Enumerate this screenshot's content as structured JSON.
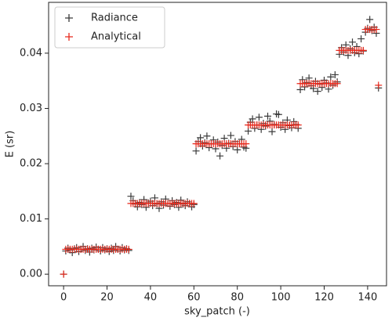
{
  "chart_data": {
    "type": "scatter",
    "xlabel": "sky_patch (-)",
    "ylabel": "E (sr)",
    "xlim": [
      -6.9,
      148.7
    ],
    "ylim": [
      -0.0021,
      0.0492
    ],
    "xticks": [
      0,
      20,
      40,
      60,
      80,
      100,
      120,
      140
    ],
    "yticks": [
      {
        "value": 0,
        "label": "0.00"
      },
      0.01,
      0.02,
      0.03,
      0.04
    ],
    "legend": "upper left",
    "marker": "+",
    "x": [
      0,
      1,
      2,
      3,
      4,
      5,
      6,
      7,
      8,
      9,
      10,
      11,
      12,
      13,
      14,
      15,
      16,
      17,
      18,
      19,
      20,
      21,
      22,
      23,
      24,
      25,
      26,
      27,
      28,
      29,
      30,
      31,
      32,
      33,
      34,
      35,
      36,
      37,
      38,
      39,
      40,
      41,
      42,
      43,
      44,
      45,
      46,
      47,
      48,
      49,
      50,
      51,
      52,
      53,
      54,
      55,
      56,
      57,
      58,
      59,
      60,
      61,
      62,
      63,
      64,
      65,
      66,
      67,
      68,
      69,
      70,
      71,
      72,
      73,
      74,
      75,
      76,
      77,
      78,
      79,
      80,
      81,
      82,
      83,
      84,
      85,
      86,
      87,
      88,
      89,
      90,
      91,
      92,
      93,
      94,
      95,
      96,
      97,
      98,
      99,
      100,
      101,
      102,
      103,
      104,
      105,
      106,
      107,
      108,
      109,
      110,
      111,
      112,
      113,
      114,
      115,
      116,
      117,
      118,
      119,
      120,
      121,
      122,
      123,
      124,
      125,
      126,
      127,
      128,
      129,
      130,
      131,
      132,
      133,
      134,
      135,
      136,
      137,
      138,
      139,
      140,
      141,
      142,
      143,
      144,
      145
    ],
    "series": [
      {
        "name": "Radiance",
        "color": "#3a3a3a",
        "values": [
          0,
          0.0042,
          0.0047,
          0.0044,
          0.0039,
          0.0046,
          0.0048,
          0.0041,
          0.0045,
          0.005,
          0.0043,
          0.0046,
          0.004,
          0.0047,
          0.0044,
          0.0049,
          0.0045,
          0.0042,
          0.0048,
          0.0044,
          0.0046,
          0.0041,
          0.0047,
          0.0043,
          0.005,
          0.0045,
          0.0042,
          0.0048,
          0.0044,
          0.0046,
          0.0043,
          0.0141,
          0.0133,
          0.0127,
          0.0122,
          0.013,
          0.0126,
          0.0135,
          0.0121,
          0.0129,
          0.0132,
          0.0124,
          0.0138,
          0.0127,
          0.0119,
          0.0131,
          0.0125,
          0.0136,
          0.0128,
          0.0123,
          0.0133,
          0.0126,
          0.013,
          0.0121,
          0.0134,
          0.0127,
          0.0124,
          0.0131,
          0.0128,
          0.0122,
          0.0126,
          0.0223,
          0.024,
          0.0247,
          0.0232,
          0.0238,
          0.025,
          0.0229,
          0.0236,
          0.0243,
          0.0227,
          0.0239,
          0.0214,
          0.0233,
          0.0246,
          0.0228,
          0.0237,
          0.0251,
          0.0231,
          0.024,
          0.0225,
          0.0236,
          0.0244,
          0.023,
          0.0228,
          0.0259,
          0.0275,
          0.0281,
          0.0264,
          0.027,
          0.0284,
          0.0262,
          0.0273,
          0.0268,
          0.0286,
          0.0277,
          0.0258,
          0.0271,
          0.029,
          0.0289,
          0.0266,
          0.0274,
          0.0262,
          0.0279,
          0.0269,
          0.0265,
          0.0276,
          0.0271,
          0.0264,
          0.0334,
          0.0352,
          0.0339,
          0.0347,
          0.0355,
          0.0341,
          0.0336,
          0.0349,
          0.0331,
          0.0344,
          0.0338,
          0.0351,
          0.0346,
          0.0335,
          0.0357,
          0.0342,
          0.0361,
          0.0348,
          0.0398,
          0.041,
          0.0402,
          0.0415,
          0.0396,
          0.0408,
          0.042,
          0.0401,
          0.0412,
          0.0399,
          0.0426,
          0.0404,
          0.0438,
          0.0445,
          0.0461,
          0.0441,
          0.0447,
          0.0436,
          0.0337
        ]
      },
      {
        "name": "Analytical",
        "color": "#e8291c",
        "values": [
          0,
          0.0045,
          0.0045,
          0.0045,
          0.0045,
          0.0045,
          0.0045,
          0.0045,
          0.0045,
          0.0045,
          0.0045,
          0.0045,
          0.0045,
          0.0045,
          0.0045,
          0.0045,
          0.0045,
          0.0045,
          0.0045,
          0.0045,
          0.0045,
          0.0045,
          0.0045,
          0.0045,
          0.0045,
          0.0045,
          0.0045,
          0.0045,
          0.0045,
          0.0045,
          0.0045,
          0.0128,
          0.0128,
          0.0128,
          0.0128,
          0.0128,
          0.0128,
          0.0128,
          0.0128,
          0.0128,
          0.0128,
          0.0128,
          0.0128,
          0.0128,
          0.0128,
          0.0128,
          0.0128,
          0.0128,
          0.0128,
          0.0128,
          0.0128,
          0.0128,
          0.0128,
          0.0128,
          0.0128,
          0.0128,
          0.0128,
          0.0128,
          0.0128,
          0.0128,
          0.0128,
          0.0236,
          0.0236,
          0.0236,
          0.0236,
          0.0236,
          0.0236,
          0.0236,
          0.0236,
          0.0236,
          0.0236,
          0.0236,
          0.0236,
          0.0236,
          0.0236,
          0.0236,
          0.0236,
          0.0236,
          0.0236,
          0.0236,
          0.0236,
          0.0236,
          0.0236,
          0.0236,
          0.0236,
          0.027,
          0.027,
          0.027,
          0.027,
          0.027,
          0.027,
          0.027,
          0.027,
          0.027,
          0.027,
          0.027,
          0.027,
          0.027,
          0.027,
          0.027,
          0.027,
          0.027,
          0.027,
          0.027,
          0.027,
          0.027,
          0.027,
          0.027,
          0.027,
          0.0345,
          0.0345,
          0.0345,
          0.0345,
          0.0345,
          0.0345,
          0.0345,
          0.0345,
          0.0345,
          0.0345,
          0.0345,
          0.0345,
          0.0345,
          0.0345,
          0.0345,
          0.0345,
          0.0345,
          0.0345,
          0.0405,
          0.0405,
          0.0405,
          0.0405,
          0.0405,
          0.0405,
          0.0405,
          0.0405,
          0.0405,
          0.0405,
          0.0405,
          0.0405,
          0.0443,
          0.0443,
          0.0443,
          0.0443,
          0.0443,
          0.0443,
          0.0342
        ]
      }
    ]
  }
}
